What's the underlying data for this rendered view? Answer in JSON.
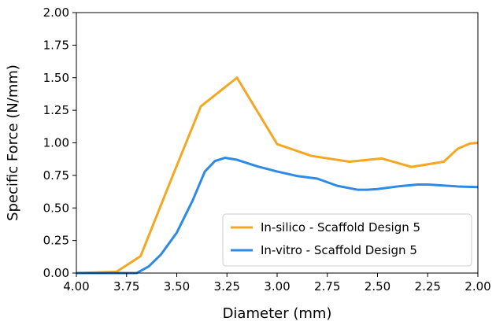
{
  "chart_data": {
    "type": "line",
    "xlabel": "Diameter (mm)",
    "ylabel": "Specific Force (N/mm)",
    "xlim": [
      4.0,
      2.0
    ],
    "ylim": [
      0.0,
      2.0
    ],
    "x_reversed": true,
    "grid": false,
    "legend_position": "lower-right",
    "xticks": [
      "4.00",
      "3.75",
      "3.50",
      "3.25",
      "3.00",
      "2.75",
      "2.50",
      "2.25",
      "2.00"
    ],
    "yticks": [
      "0.00",
      "0.25",
      "0.50",
      "0.75",
      "1.00",
      "1.25",
      "1.50",
      "1.75",
      "2.00"
    ],
    "series": [
      {
        "name": "In-silico - Scaffold Design 5",
        "color": "#f5a623",
        "x": [
          4.0,
          3.8,
          3.68,
          3.53,
          3.38,
          3.2,
          3.0,
          2.83,
          2.64,
          2.48,
          2.33,
          2.17,
          2.1,
          2.04,
          2.0
        ],
        "y": [
          0.0,
          0.01,
          0.13,
          0.71,
          1.28,
          1.5,
          0.99,
          0.9,
          0.855,
          0.88,
          0.815,
          0.855,
          0.955,
          0.995,
          1.0
        ]
      },
      {
        "name": "In-vitro - Scaffold Design 5",
        "color": "#2e8ae6",
        "x": [
          4.0,
          3.7,
          3.64,
          3.58,
          3.5,
          3.42,
          3.36,
          3.31,
          3.26,
          3.2,
          3.1,
          3.0,
          2.9,
          2.8,
          2.7,
          2.6,
          2.55,
          2.5,
          2.4,
          2.3,
          2.25,
          2.2,
          2.1,
          2.0
        ],
        "y": [
          0.0,
          0.0,
          0.05,
          0.14,
          0.31,
          0.56,
          0.78,
          0.86,
          0.885,
          0.87,
          0.82,
          0.78,
          0.745,
          0.725,
          0.67,
          0.64,
          0.64,
          0.645,
          0.665,
          0.68,
          0.68,
          0.675,
          0.665,
          0.66
        ]
      }
    ]
  }
}
